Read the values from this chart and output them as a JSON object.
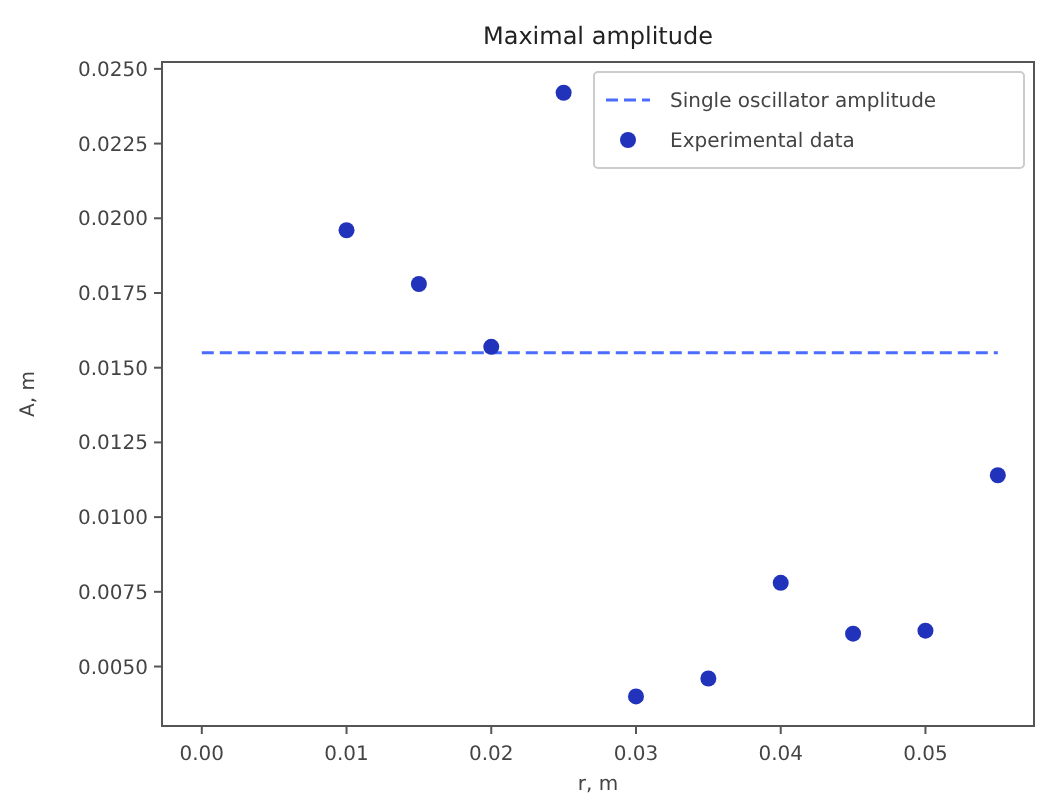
{
  "chart_data": {
    "type": "scatter",
    "title": "Maximal amplitude",
    "xlabel": "r, m",
    "ylabel": "A, m",
    "xlim": [
      -0.00275,
      0.0575
    ],
    "ylim": [
      0.00301,
      0.02523
    ],
    "xticks": [
      {
        "value": 0,
        "label": "0.00"
      },
      {
        "value": 0.01,
        "label": "0.01"
      },
      {
        "value": 0.02,
        "label": "0.02"
      },
      {
        "value": 0.03,
        "label": "0.03"
      },
      {
        "value": 0.04,
        "label": "0.04"
      },
      {
        "value": 0.05,
        "label": "0.05"
      }
    ],
    "yticks": [
      {
        "value": 0.005,
        "label": "0.0050"
      },
      {
        "value": 0.0075,
        "label": "0.0075"
      },
      {
        "value": 0.01,
        "label": "0.0100"
      },
      {
        "value": 0.0125,
        "label": "0.0125"
      },
      {
        "value": 0.015,
        "label": "0.0150"
      },
      {
        "value": 0.0175,
        "label": "0.0175"
      },
      {
        "value": 0.02,
        "label": "0.0200"
      },
      {
        "value": 0.0225,
        "label": "0.0225"
      },
      {
        "value": 0.025,
        "label": "0.0250"
      }
    ],
    "grid": false,
    "legend": "top right",
    "series": [
      {
        "name": "Single oscillator amplitude",
        "type": "line",
        "line_style": "dashed",
        "marker": "none",
        "color": "#4b6cff",
        "x": [
          0,
          0.055
        ],
        "values": [
          0.0155,
          0.0155
        ]
      },
      {
        "name": "Experimental data",
        "marker": "circle",
        "color": "#2233bb",
        "x": [
          0.01,
          0.015,
          0.02,
          0.025,
          0.03,
          0.035,
          0.04,
          0.045,
          0.05,
          0.055
        ],
        "values": [
          0.0196,
          0.0178,
          0.0157,
          0.0242,
          0.004,
          0.0046,
          0.0078,
          0.0061,
          0.0062,
          0.0114
        ]
      }
    ]
  }
}
